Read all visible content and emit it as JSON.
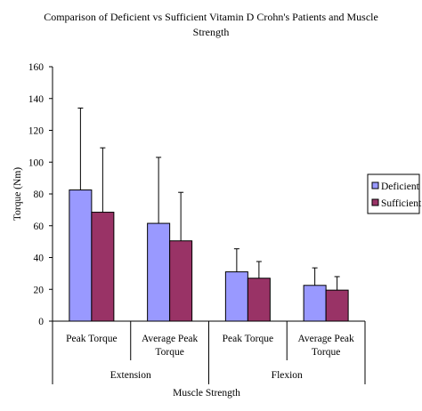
{
  "chart_data": {
    "type": "bar",
    "title": [
      "Comparison of Deficient vs Sufficient Vitamin D Crohn's Patients and Muscle",
      "Strength"
    ],
    "xlabel": "Muscle Strength",
    "ylabel": "Torque (Nm)",
    "ylim": [
      0,
      160
    ],
    "yticks": [
      0,
      20,
      40,
      60,
      80,
      100,
      120,
      140,
      160
    ],
    "grid": false,
    "legend_position": "right",
    "groups": [
      {
        "label": "Extension",
        "categories": [
          [
            "Peak Torque"
          ],
          [
            "Average Peak",
            "Torque"
          ]
        ]
      },
      {
        "label": "Flexion",
        "categories": [
          [
            "Peak Torque"
          ],
          [
            "Average Peak",
            "Torque"
          ]
        ]
      }
    ],
    "series": [
      {
        "name": "Deficient",
        "color": "#9999ff",
        "values": [
          82.5,
          61.5,
          31,
          22.5
        ],
        "error_upper": [
          134,
          103,
          45.5,
          33.5
        ]
      },
      {
        "name": "Sufficient",
        "color": "#993366",
        "values": [
          68.5,
          50.5,
          27,
          19.5
        ],
        "error_upper": [
          109,
          81,
          37.5,
          28
        ]
      }
    ]
  }
}
